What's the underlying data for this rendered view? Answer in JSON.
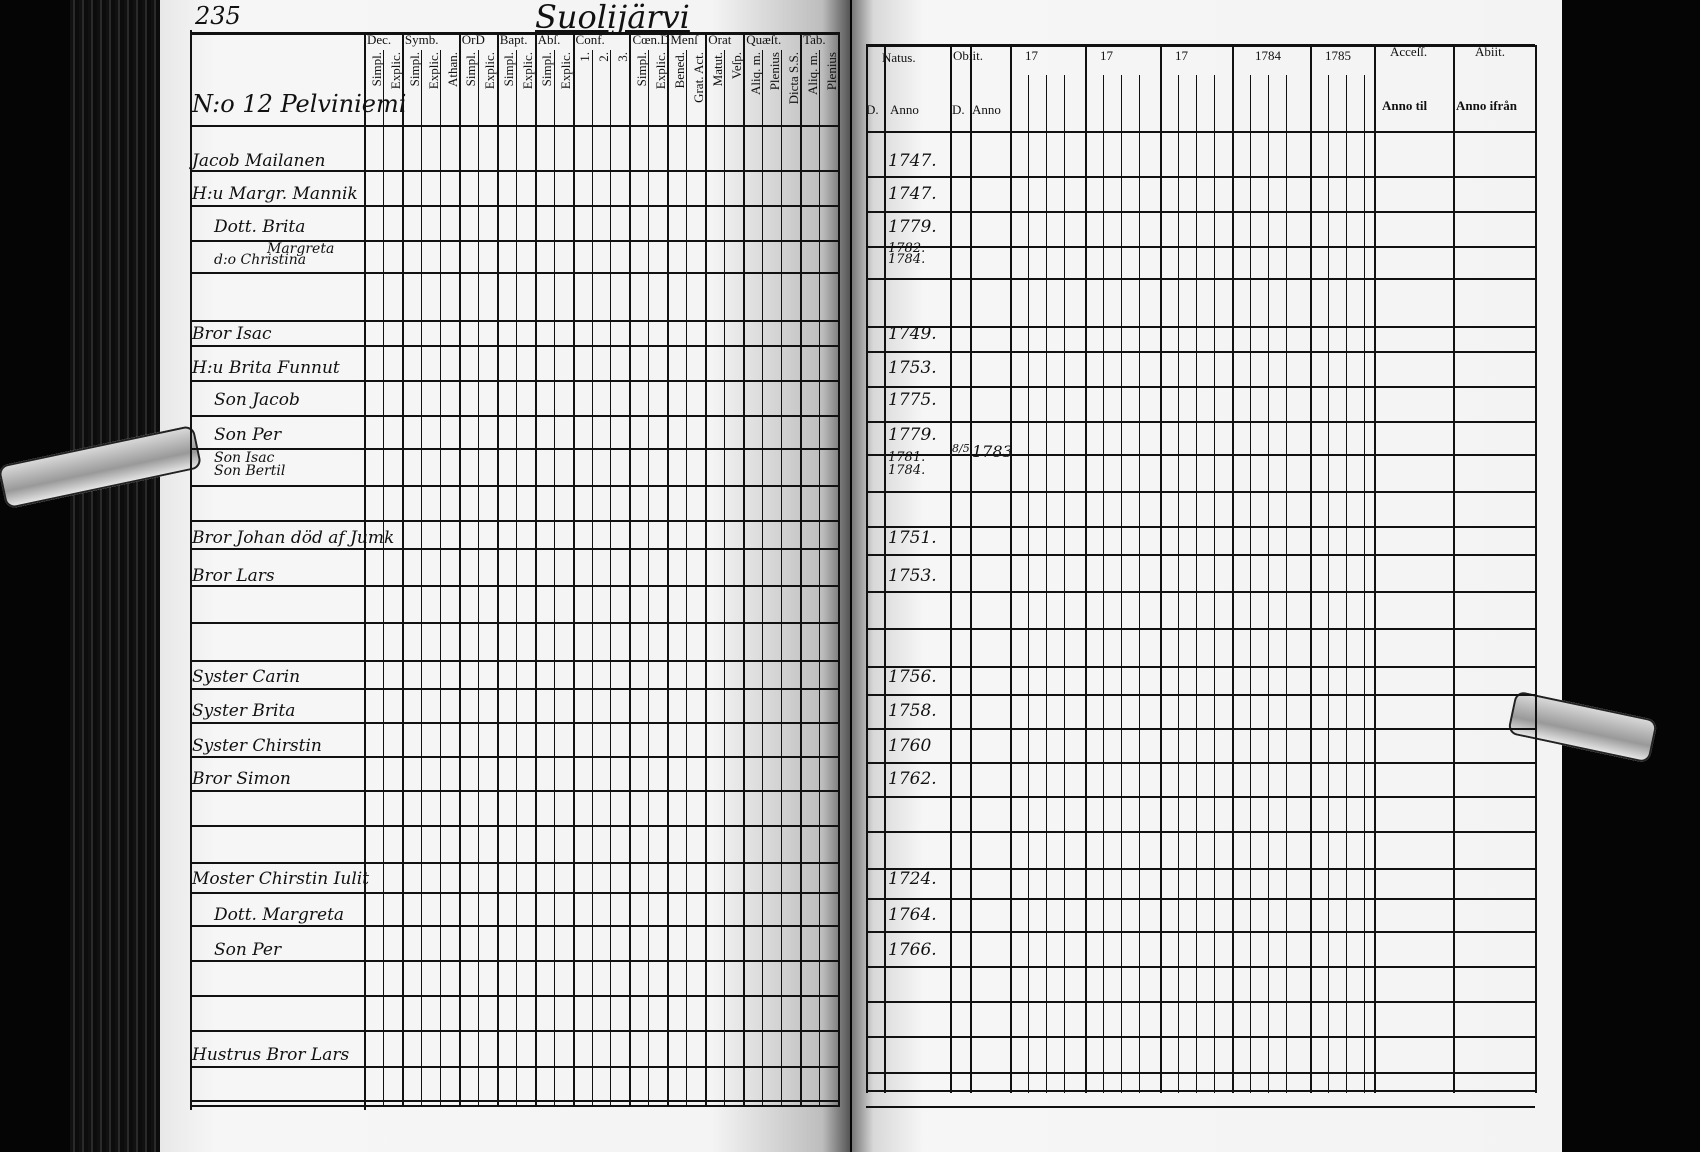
{
  "left_page": {
    "page_number": "235",
    "parish": "Suolijärvi",
    "village": "N:o 12 Pelviniemi",
    "column_groups": [
      {
        "label": "Dec.",
        "subs": [
          "Simpl.",
          "Explic."
        ]
      },
      {
        "label": "Symb.",
        "subs": [
          "Simpl.",
          "Explic.",
          "Athan."
        ]
      },
      {
        "label": "OrD",
        "subs": [
          "Simpl.",
          "Explic."
        ]
      },
      {
        "label": "Bapt.",
        "subs": [
          "Simpl.",
          "Explic."
        ]
      },
      {
        "label": "Abſ.",
        "subs": [
          "Simpl.",
          "Explic."
        ]
      },
      {
        "label": "Conf.",
        "subs": [
          "1.",
          "2.",
          "3."
        ]
      },
      {
        "label": "Cœn.D",
        "subs": [
          "Simpl.",
          "Explic."
        ]
      },
      {
        "label": "Menſ",
        "subs": [
          "Bened.",
          "Grat. Act."
        ]
      },
      {
        "label": "Orat",
        "subs": [
          "Matut.",
          "Veſp."
        ]
      },
      {
        "label": "Quæſt.",
        "subs": [
          "Aliq. m.",
          "Plenius",
          "Dicta S.S."
        ]
      },
      {
        "label": "Tab.",
        "subs": [
          "Aliq. m.",
          "Plenius"
        ]
      }
    ],
    "names": [
      "Jacob Mailanen",
      "H:u Margr. Mannik",
      "Dott. Brita",
      "Margreta",
      "d:o Christina",
      "Bror Isac",
      "H:u Brita Funnut",
      "Son Jacob",
      "Son Per",
      "Son Isac",
      "Son Bertil",
      "Bror Johan död af Jumk",
      "Bror Lars",
      "Syster Carin",
      "Syster Brita",
      "Syster Chirstin",
      "Bror Simon",
      "Moster Chirstin Iulit",
      "Dott. Margreta",
      "Son Per",
      "Hustrus Bror Lars"
    ]
  },
  "right_page": {
    "headers": {
      "natus": "Natus.",
      "obiit": "Obiit.",
      "d": "D.",
      "anno": "Anno",
      "years": [
        "17",
        "17",
        "17",
        "1784",
        "1785"
      ],
      "accessit": "Acceſſ.",
      "abiit": "Abiit.",
      "anno_til": "Anno til",
      "anno_ifran": "Anno ifrån"
    },
    "birth_years": [
      "1747.",
      "1747.",
      "1779.",
      "1782.",
      "1784.",
      "1749.",
      "1753.",
      "1775.",
      "1779.",
      "1781.",
      "1784.",
      "1751.",
      "1753.",
      "1756.",
      "1758.",
      "1760",
      "1762.",
      "1724.",
      "1764.",
      "1766.",
      ""
    ],
    "death": {
      "row": 9,
      "day": "8/5",
      "year": "1783"
    }
  }
}
